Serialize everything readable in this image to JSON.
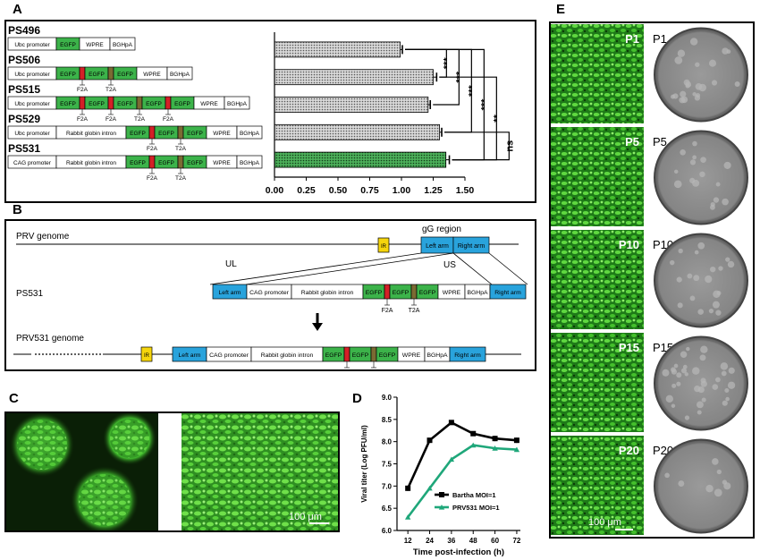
{
  "panels": {
    "a": "A",
    "b": "B",
    "c": "C",
    "d": "D",
    "e": "E"
  },
  "colors": {
    "egfp": "#3cb34a",
    "f2a": "#d42027",
    "t2a": "#7b6a33",
    "arm": "#29a3dc",
    "ir": "#f5d50d",
    "bar": "#888888",
    "bar_last": "#2f7a3a",
    "bartha": "#000000",
    "prv531": "#1fa77a"
  },
  "panel_a": {
    "constructs": [
      {
        "name": "PS496",
        "parts": [
          [
            "Ubc promoter",
            "w"
          ],
          [
            "EGFP",
            "g"
          ],
          [
            "WPRE",
            "w"
          ],
          [
            "BGHpA",
            "w"
          ]
        ]
      },
      {
        "name": "PS506",
        "parts": [
          [
            "Ubc promoter",
            "w"
          ],
          [
            "EGFP",
            "g"
          ],
          [
            "",
            "r"
          ],
          [
            "EGFP",
            "g"
          ],
          [
            "",
            "b"
          ],
          [
            "EGFP",
            "g"
          ],
          [
            "WPRE",
            "w"
          ],
          [
            "BGHpA",
            "w"
          ]
        ],
        "tags": [
          "F2A",
          "T2A"
        ]
      },
      {
        "name": "PS515",
        "parts": [
          [
            "Ubc promoter",
            "w"
          ],
          [
            "EGFP",
            "g"
          ],
          [
            "",
            "r"
          ],
          [
            "EGFP",
            "g"
          ],
          [
            "",
            "r"
          ],
          [
            "EGFP",
            "g"
          ],
          [
            "",
            "b"
          ],
          [
            "EGFP",
            "g"
          ],
          [
            "",
            "r"
          ],
          [
            "EGFP",
            "g"
          ],
          [
            "WPRE",
            "w"
          ],
          [
            "BGHpA",
            "w"
          ]
        ],
        "tags": [
          "F2A",
          "F2A",
          "T2A",
          "F2A"
        ]
      },
      {
        "name": "PS529",
        "parts": [
          [
            "Ubc promoter",
            "w"
          ],
          [
            "Rabbit globin intron",
            "w"
          ],
          [
            "EGFP",
            "g"
          ],
          [
            "",
            "r"
          ],
          [
            "EGFP",
            "g"
          ],
          [
            "",
            "b"
          ],
          [
            "EGFP",
            "g"
          ],
          [
            "WPRE",
            "w"
          ],
          [
            "BGHpA",
            "w"
          ]
        ],
        "tags": [
          "F2A",
          "T2A"
        ]
      },
      {
        "name": "PS531",
        "parts": [
          [
            "CAG promoter",
            "w"
          ],
          [
            "Rabbit globin intron",
            "w"
          ],
          [
            "EGFP",
            "g"
          ],
          [
            "",
            "r"
          ],
          [
            "EGFP",
            "g"
          ],
          [
            "",
            "b"
          ],
          [
            "EGFP",
            "g"
          ],
          [
            "WPRE",
            "w"
          ],
          [
            "BGHpA",
            "w"
          ]
        ],
        "tags": [
          "F2A",
          "T2A"
        ]
      }
    ],
    "significance": [
      "***",
      "***",
      "***",
      "***",
      "**",
      "ns"
    ]
  },
  "chart_data": [
    {
      "type": "bar",
      "orientation": "horizontal",
      "categories": [
        "PS496",
        "PS506",
        "PS515",
        "PS529",
        "PS531"
      ],
      "values": [
        0.99,
        1.25,
        1.21,
        1.3,
        1.35
      ],
      "errors": [
        0.01,
        0.02,
        0.01,
        0.01,
        0.02
      ],
      "xlim": [
        0,
        1.5
      ],
      "xticks": [
        "0.00",
        "0.25",
        "0.50",
        "0.75",
        "1.00",
        "1.25",
        "1.50"
      ],
      "title": "",
      "xlabel": "",
      "ylabel": ""
    },
    {
      "type": "line",
      "x": [
        12,
        24,
        36,
        48,
        60,
        72
      ],
      "xticks": [
        "12",
        "24",
        "36",
        "48",
        "60",
        "72"
      ],
      "yticks": [
        "6.0",
        "6.5",
        "7.0",
        "7.5",
        "8.0",
        "8.5",
        "9.0"
      ],
      "ylim": [
        6.0,
        9.0
      ],
      "xlabel": "Time post-infection (h)",
      "ylabel": "Viral titer (Log PFU/ml)",
      "legend_position": "bottom-right",
      "series": [
        {
          "name": "Bartha MOI=1",
          "values": [
            6.95,
            8.03,
            8.43,
            8.18,
            8.07,
            8.03
          ],
          "errors": [
            0.06,
            0.03,
            0.02,
            0.02,
            0.06,
            0.06
          ]
        },
        {
          "name": "PRV531 MOI=1",
          "values": [
            6.3,
            6.95,
            7.6,
            7.92,
            7.85,
            7.82
          ],
          "errors": [
            0.02,
            0.02,
            0.02,
            0.02,
            0.05,
            0.05
          ]
        }
      ]
    }
  ],
  "panel_b": {
    "prv_genome": "PRV genome",
    "gg_region": "gG region",
    "ir": "IR",
    "left_arm": "Left arm",
    "right_arm": "Right arm",
    "ul": "UL",
    "us": "US",
    "ps531": "PS531",
    "prv531_genome": "PRV531 genome",
    "cassette": [
      "Left arm",
      "CAG promoter",
      "Rabbit globin intron",
      "EGFP",
      "EGFP",
      "EGFP",
      "WPRE",
      "BGHpA",
      "Right arm"
    ],
    "f2a": "F2A",
    "t2a": "T2A"
  },
  "panel_c": {
    "scale": "100 μm"
  },
  "panel_e": {
    "passages": [
      "P1",
      "P5",
      "P10",
      "P15",
      "P20"
    ],
    "scale": "100 μm"
  }
}
